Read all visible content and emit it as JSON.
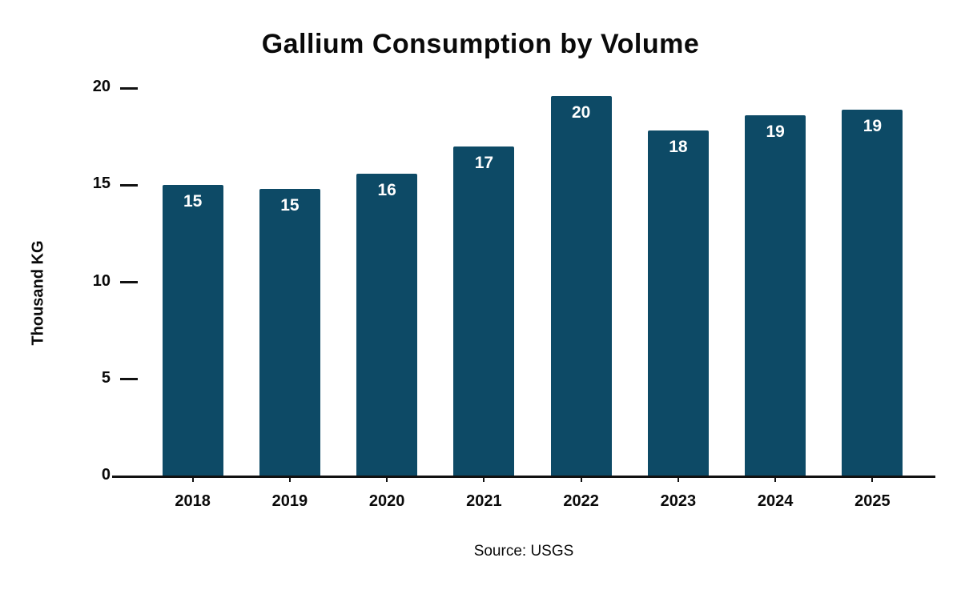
{
  "title": "Gallium Consumption by Volume",
  "y_axis_title": "Thousand KG",
  "source_note": "Source: USGS",
  "chart_data": {
    "type": "bar",
    "title": "Gallium Consumption by Volume",
    "xlabel": "",
    "ylabel": "Thousand KG",
    "categories": [
      "2018",
      "2019",
      "2020",
      "2021",
      "2022",
      "2023",
      "2024",
      "2025"
    ],
    "values": [
      15.0,
      14.8,
      15.6,
      17.0,
      19.6,
      17.8,
      18.6,
      18.9
    ],
    "bar_labels": [
      "15",
      "15",
      "16",
      "17",
      "20",
      "18",
      "19",
      "19"
    ],
    "ylim": [
      0,
      20
    ],
    "yticks": [
      0,
      5,
      10,
      15,
      20
    ],
    "grid": false,
    "legend": false,
    "bar_color": "#0d4a66",
    "bar_label_color": "#ffffff",
    "axis_color": "#111111",
    "source": "Source: USGS"
  }
}
